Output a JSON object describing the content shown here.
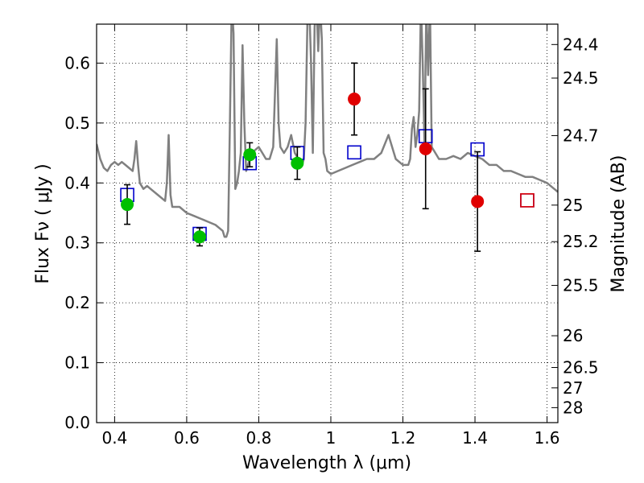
{
  "chart_data": {
    "type": "scatter",
    "title": "",
    "xlabel": "Wavelength  λ (μm)",
    "ylabel": "Flux  Fν  ( μJy )",
    "ylabel_right": "Magnitude (AB)",
    "xlim": [
      0.35,
      1.63
    ],
    "ylim": [
      0.0,
      0.665
    ],
    "grid": true,
    "x_ticks": [
      0.4,
      0.6,
      0.8,
      1.0,
      1.2,
      1.4,
      1.6
    ],
    "x_tick_labels": [
      "0.4",
      "0.6",
      "0.8",
      "1",
      "1.2",
      "1.4",
      "1.6"
    ],
    "y_ticks": [
      0.0,
      0.1,
      0.2,
      0.3,
      0.4,
      0.5,
      0.6
    ],
    "y_tick_labels": [
      "0.0",
      "0.1",
      "0.2",
      "0.3",
      "0.4",
      "0.5",
      "0.6"
    ],
    "right_ticks": [
      {
        "flux": 0.025,
        "label": "28"
      },
      {
        "flux": 0.058,
        "label": "27"
      },
      {
        "flux": 0.092,
        "label": "26.5"
      },
      {
        "flux": 0.145,
        "label": "26"
      },
      {
        "flux": 0.229,
        "label": "25.5"
      },
      {
        "flux": 0.302,
        "label": "25.2"
      },
      {
        "flux": 0.363,
        "label": "25"
      },
      {
        "flux": 0.479,
        "label": "24.7"
      },
      {
        "flux": 0.575,
        "label": "24.5"
      },
      {
        "flux": 0.631,
        "label": "24.4"
      }
    ],
    "series": [
      {
        "type": "line",
        "color": "#808080",
        "x": [
          0.35,
          0.36,
          0.37,
          0.38,
          0.39,
          0.4,
          0.41,
          0.42,
          0.43,
          0.44,
          0.45,
          0.455,
          0.46,
          0.465,
          0.47,
          0.48,
          0.49,
          0.5,
          0.52,
          0.54,
          0.545,
          0.55,
          0.555,
          0.56,
          0.58,
          0.6,
          0.62,
          0.64,
          0.66,
          0.68,
          0.7,
          0.705,
          0.71,
          0.715,
          0.72,
          0.725,
          0.73,
          0.735,
          0.74,
          0.745,
          0.75,
          0.755,
          0.76,
          0.765,
          0.77,
          0.78,
          0.79,
          0.8,
          0.81,
          0.82,
          0.83,
          0.84,
          0.845,
          0.85,
          0.855,
          0.86,
          0.87,
          0.88,
          0.89,
          0.9,
          0.91,
          0.92,
          0.925,
          0.93,
          0.935,
          0.94,
          0.945,
          0.95,
          0.955,
          0.96,
          0.965,
          0.97,
          0.975,
          0.98,
          0.985,
          0.99,
          1.0,
          1.02,
          1.04,
          1.06,
          1.08,
          1.1,
          1.12,
          1.14,
          1.16,
          1.18,
          1.2,
          1.21,
          1.215,
          1.22,
          1.225,
          1.23,
          1.235,
          1.24,
          1.245,
          1.25,
          1.255,
          1.26,
          1.265,
          1.27,
          1.275,
          1.28,
          1.29,
          1.3,
          1.32,
          1.34,
          1.36,
          1.38,
          1.4,
          1.42,
          1.44,
          1.46,
          1.48,
          1.5,
          1.52,
          1.54,
          1.56,
          1.58,
          1.6,
          1.62,
          1.63
        ],
        "y": [
          0.465,
          0.44,
          0.425,
          0.42,
          0.43,
          0.435,
          0.43,
          0.435,
          0.43,
          0.425,
          0.42,
          0.44,
          0.47,
          0.43,
          0.4,
          0.39,
          0.395,
          0.39,
          0.38,
          0.37,
          0.4,
          0.48,
          0.38,
          0.36,
          0.36,
          0.35,
          0.345,
          0.34,
          0.335,
          0.33,
          0.32,
          0.31,
          0.31,
          0.32,
          0.5,
          0.7,
          0.65,
          0.39,
          0.4,
          0.42,
          0.45,
          0.63,
          0.5,
          0.42,
          0.43,
          0.45,
          0.455,
          0.46,
          0.45,
          0.44,
          0.44,
          0.46,
          0.55,
          0.64,
          0.5,
          0.46,
          0.45,
          0.46,
          0.48,
          0.45,
          0.44,
          0.43,
          0.44,
          0.5,
          0.67,
          0.7,
          0.6,
          0.45,
          0.66,
          0.7,
          0.62,
          0.7,
          0.64,
          0.45,
          0.44,
          0.42,
          0.415,
          0.42,
          0.425,
          0.43,
          0.435,
          0.44,
          0.44,
          0.45,
          0.48,
          0.44,
          0.43,
          0.43,
          0.43,
          0.44,
          0.49,
          0.51,
          0.46,
          0.48,
          0.52,
          0.7,
          0.6,
          0.46,
          0.7,
          0.58,
          0.7,
          0.46,
          0.45,
          0.44,
          0.44,
          0.445,
          0.44,
          0.45,
          0.445,
          0.44,
          0.43,
          0.43,
          0.42,
          0.42,
          0.415,
          0.41,
          0.41,
          0.405,
          0.4,
          0.39,
          0.385
        ]
      },
      {
        "type": "marker",
        "marker": "open-square",
        "color": "#0000cc",
        "x": [
          0.435,
          0.636,
          0.775,
          0.907,
          1.065,
          1.263,
          1.407,
          1.545
        ],
        "y": [
          0.38,
          0.315,
          0.433,
          0.45,
          0.451,
          0.478,
          0.456,
          0.371
        ]
      },
      {
        "type": "marker",
        "marker": "open-square",
        "color": "#e00000",
        "x": [
          1.545
        ],
        "y": [
          0.371
        ]
      },
      {
        "type": "marker",
        "marker": "filled-circle",
        "color": "#00c000",
        "x": [
          0.435,
          0.636,
          0.775,
          0.907
        ],
        "y": [
          0.364,
          0.31,
          0.447,
          0.433
        ],
        "yerr": [
          0.033,
          0.015,
          0.02,
          0.027
        ]
      },
      {
        "type": "marker",
        "marker": "filled-circle",
        "color": "#e00000",
        "x": [
          1.065,
          1.263,
          1.407
        ],
        "y": [
          0.54,
          0.457,
          0.369
        ],
        "yerr": [
          0.06,
          0.1,
          0.083
        ]
      }
    ]
  }
}
